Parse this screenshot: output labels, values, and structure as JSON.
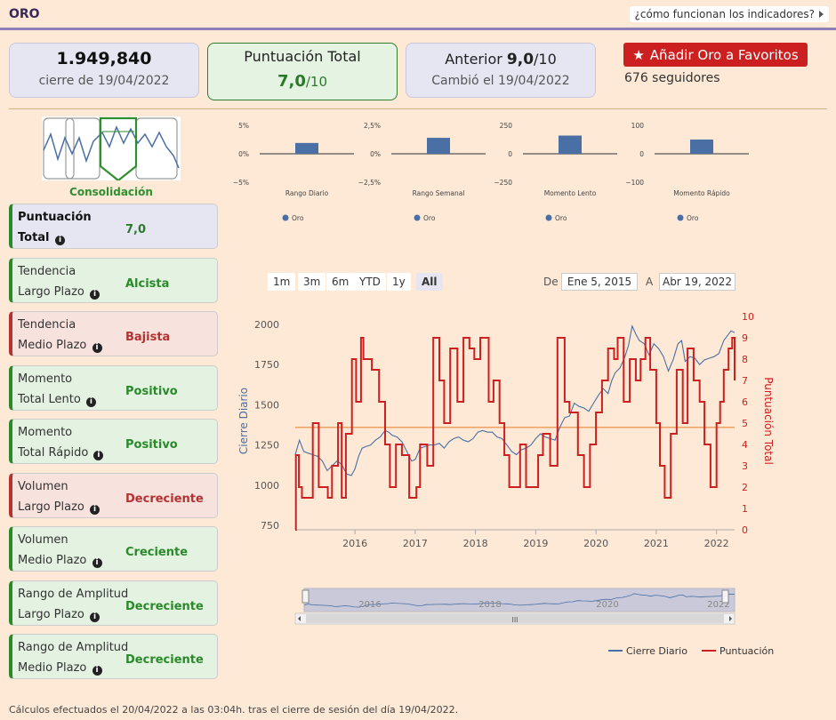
{
  "header": {
    "title": "ORO",
    "how_link": "¿cómo funcionan los indicadores?"
  },
  "price_card": {
    "price": "1.949,840",
    "date": "cierre de 19/04/2022"
  },
  "score_card": {
    "label": "Puntuación Total",
    "value": "7,0",
    "suffix": "/10"
  },
  "prev_card": {
    "label": "Anterior",
    "value": "9,0",
    "suffix": "/10",
    "changed": "Cambió el 19/04/2022"
  },
  "favorites": {
    "button": "Añadir Oro a Favoritos",
    "followers": "676 seguidores"
  },
  "trend_label": "Consolidación",
  "indicators": [
    {
      "line1": "Puntuación",
      "line2": "Total",
      "value": "7,0",
      "state": "blue"
    },
    {
      "line1": "Tendencia",
      "line2": "Largo Plazo",
      "value": "Alcista",
      "state": "green"
    },
    {
      "line1": "Tendencia",
      "line2": "Medio Plazo",
      "value": "Bajista",
      "state": "red"
    },
    {
      "line1": "Momento",
      "line2": "Total Lento",
      "value": "Positivo",
      "state": "green"
    },
    {
      "line1": "Momento",
      "line2": "Total Rápido",
      "value": "Positivo",
      "state": "green"
    },
    {
      "line1": "Volumen",
      "line2": "Largo Plazo",
      "value": "Decreciente",
      "state": "red"
    },
    {
      "line1": "Volumen",
      "line2": "Medio Plazo",
      "value": "Creciente",
      "state": "green"
    },
    {
      "line1": "Rango de Amplitud",
      "line2": "Largo Plazo",
      "value": "Decreciente",
      "state": "green"
    },
    {
      "line1": "Rango de Amplitud",
      "line2": "Medio Plazo",
      "value": "Decreciente",
      "state": "green"
    }
  ],
  "chart_data": [
    {
      "type": "bar",
      "xlabel": "Rango Diario",
      "categories": [
        "Oro"
      ],
      "series": [
        {
          "name": "Oro",
          "values": [
            1.9
          ]
        }
      ],
      "ylim": [
        -5,
        5
      ],
      "yticks": [
        "5%",
        "0%",
        "−5%"
      ],
      "color": "#4a6fa5"
    },
    {
      "type": "bar",
      "xlabel": "Rango Semanal",
      "categories": [
        "Oro"
      ],
      "series": [
        {
          "name": "Oro",
          "values": [
            1.4
          ]
        }
      ],
      "ylim": [
        -2.5,
        2.5
      ],
      "yticks": [
        "2,5%",
        "0%",
        "−2,5%"
      ],
      "color": "#4a6fa5"
    },
    {
      "type": "bar",
      "xlabel": "Momento Lento",
      "categories": [
        "Oro"
      ],
      "series": [
        {
          "name": "Oro",
          "values": [
            160
          ]
        }
      ],
      "ylim": [
        -250,
        250
      ],
      "yticks": [
        "250",
        "0",
        "−250"
      ],
      "color": "#4a6fa5"
    },
    {
      "type": "bar",
      "xlabel": "Momento Rápido",
      "categories": [
        "Oro"
      ],
      "series": [
        {
          "name": "Oro",
          "values": [
            50
          ]
        }
      ],
      "ylim": [
        -100,
        100
      ],
      "yticks": [
        "100",
        "0",
        "−100"
      ],
      "color": "#4a6fa5"
    },
    {
      "type": "line",
      "ylabel": "Cierre Diario",
      "y2label": "Puntuación Total",
      "ylim": [
        750,
        2050
      ],
      "y2lim": [
        0,
        10
      ],
      "yticks": [
        750,
        1000,
        1250,
        1500,
        1750,
        2000
      ],
      "y2ticks": [
        0,
        1,
        2,
        3,
        4,
        5,
        6,
        7,
        8,
        9,
        10
      ],
      "xlim": [
        2015.01,
        2022.3
      ],
      "xticks": [
        "2016",
        "2017",
        "2018",
        "2019",
        "2020",
        "2021",
        "2022"
      ],
      "reference_line": 4.8,
      "colors": {
        "price": "#4a6fa5",
        "score": "#cc1f1f",
        "ref": "#f0a060"
      },
      "series": [
        {
          "name": "Cierre Diario",
          "x": [
            2015.01,
            2015.08,
            2015.15,
            2015.22,
            2015.3,
            2015.38,
            2015.46,
            2015.54,
            2015.62,
            2015.7,
            2015.78,
            2015.86,
            2015.94,
            2016.0,
            2016.06,
            2016.12,
            2016.18,
            2016.26,
            2016.34,
            2016.42,
            2016.5,
            2016.56,
            2016.62,
            2016.7,
            2016.78,
            2016.86,
            2016.94,
            2017.0,
            2017.08,
            2017.16,
            2017.24,
            2017.32,
            2017.4,
            2017.48,
            2017.56,
            2017.64,
            2017.72,
            2017.8,
            2017.88,
            2017.96,
            2018.04,
            2018.12,
            2018.2,
            2018.28,
            2018.36,
            2018.44,
            2018.52,
            2018.6,
            2018.68,
            2018.76,
            2018.84,
            2018.92,
            2019.0,
            2019.08,
            2019.16,
            2019.24,
            2019.32,
            2019.4,
            2019.48,
            2019.56,
            2019.64,
            2019.72,
            2019.8,
            2019.88,
            2019.96,
            2020.04,
            2020.12,
            2020.2,
            2020.26,
            2020.32,
            2020.4,
            2020.48,
            2020.54,
            2020.6,
            2020.66,
            2020.72,
            2020.8,
            2020.88,
            2020.96,
            2021.04,
            2021.12,
            2021.2,
            2021.28,
            2021.36,
            2021.42,
            2021.48,
            2021.56,
            2021.64,
            2021.72,
            2021.8,
            2021.88,
            2021.96,
            2022.04,
            2022.12,
            2022.18,
            2022.24,
            2022.3
          ],
          "values": [
            1190,
            1280,
            1210,
            1200,
            1190,
            1180,
            1150,
            1090,
            1120,
            1150,
            1130,
            1070,
            1060,
            1100,
            1180,
            1230,
            1240,
            1250,
            1280,
            1300,
            1340,
            1330,
            1310,
            1300,
            1270,
            1210,
            1150,
            1160,
            1230,
            1240,
            1250,
            1250,
            1260,
            1230,
            1270,
            1290,
            1300,
            1280,
            1270,
            1290,
            1330,
            1340,
            1330,
            1330,
            1300,
            1290,
            1250,
            1210,
            1190,
            1220,
            1230,
            1250,
            1290,
            1320,
            1300,
            1290,
            1280,
            1360,
            1420,
            1430,
            1510,
            1490,
            1480,
            1460,
            1510,
            1560,
            1600,
            1570,
            1650,
            1700,
            1730,
            1800,
            1870,
            1990,
            1940,
            1900,
            1880,
            1810,
            1880,
            1850,
            1800,
            1710,
            1780,
            1880,
            1900,
            1770,
            1800,
            1790,
            1750,
            1780,
            1790,
            1800,
            1820,
            1900,
            1930,
            1960,
            1950
          ]
        },
        {
          "name": "Puntuación",
          "x": [
            2015.01,
            2015.02,
            2015.07,
            2015.12,
            2015.3,
            2015.4,
            2015.55,
            2015.62,
            2015.72,
            2015.78,
            2015.85,
            2015.95,
            2016.02,
            2016.1,
            2016.14,
            2016.28,
            2016.4,
            2016.5,
            2016.58,
            2016.68,
            2016.78,
            2016.9,
            2017.02,
            2017.08,
            2017.2,
            2017.3,
            2017.4,
            2017.48,
            2017.58,
            2017.7,
            2017.8,
            2017.9,
            2017.98,
            2018.08,
            2018.22,
            2018.3,
            2018.4,
            2018.48,
            2018.56,
            2018.66,
            2018.74,
            2018.84,
            2018.92,
            2019.04,
            2019.12,
            2019.24,
            2019.36,
            2019.48,
            2019.56,
            2019.7,
            2019.8,
            2019.9,
            2020.0,
            2020.1,
            2020.2,
            2020.3,
            2020.36,
            2020.46,
            2020.56,
            2020.66,
            2020.74,
            2020.82,
            2020.9,
            2021.0,
            2021.06,
            2021.14,
            2021.24,
            2021.34,
            2021.44,
            2021.52,
            2021.62,
            2021.72,
            2021.8,
            2021.9,
            2022.0,
            2022.06,
            2022.12,
            2022.2,
            2022.26,
            2022.3
          ],
          "values": [
            0,
            3.5,
            2,
            1.5,
            5,
            2,
            1.5,
            3,
            5,
            1.5,
            4.5,
            8,
            6,
            9,
            8,
            7.5,
            6,
            4,
            2,
            4,
            3.5,
            1.5,
            2,
            4,
            3,
            9,
            7,
            5,
            8.5,
            6,
            9,
            8.5,
            8,
            9,
            6,
            7,
            5,
            3.5,
            2,
            2,
            4,
            2,
            2,
            3.5,
            4.5,
            3,
            9,
            6,
            5.5,
            3.5,
            2,
            4,
            5.5,
            7,
            8.5,
            8,
            9,
            6,
            8,
            7,
            8,
            9,
            7.5,
            5,
            3,
            1.5,
            4.5,
            7.5,
            5,
            8.5,
            7,
            6,
            4,
            2,
            5,
            6,
            7.5,
            8.5,
            9,
            7
          ]
        }
      ]
    }
  ],
  "range_buttons": [
    "1m",
    "3m",
    "6m",
    "YTD",
    "1y",
    "All"
  ],
  "date_range": {
    "from_label": "De",
    "from": "Ene 5, 2015",
    "to_label": "A",
    "to": "Abr 19, 2022"
  },
  "navigator": {
    "labels": [
      "2016",
      "2018",
      "2020",
      "2022"
    ],
    "scroll_label": "III"
  },
  "legend": [
    "Cierre Diario",
    "Puntuación"
  ],
  "footer": "Cálculos efectuados el 20/04/2022 a las 03:04h. tras el cierre de sesión del día 19/04/2022."
}
